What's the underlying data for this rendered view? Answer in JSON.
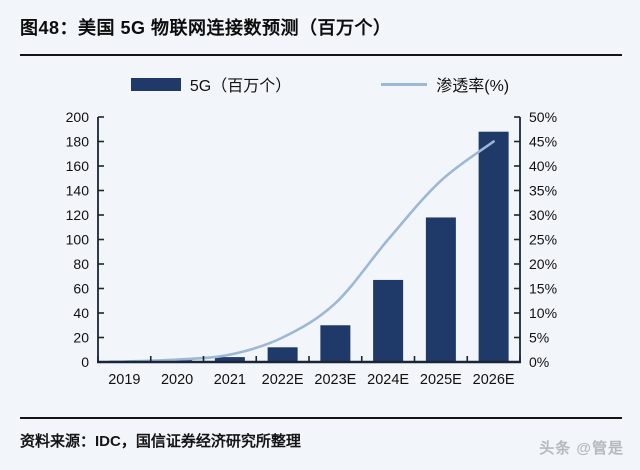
{
  "page": {
    "title": "图48：美国 5G 物联网连接数预测（百万个）",
    "source": "资料来源：IDC，国信证券经济研究所整理",
    "watermark": "头条 @管是"
  },
  "legend": {
    "bar_label": "5G（百万个）",
    "line_label": "渗透率(%)"
  },
  "colors": {
    "bar": "#1f3a68",
    "line": "#9cb8d6",
    "axis": "#1b2537",
    "text": "#111111",
    "background": "#f2f6fa",
    "watermark": "#b5bac0"
  },
  "chart_data": {
    "type": "bar",
    "subtype": "combo-bar-line-dual-axis",
    "title": "美国 5G 物联网连接数预测（百万个）",
    "categories": [
      "2019",
      "2020",
      "2021",
      "2022E",
      "2023E",
      "2024E",
      "2025E",
      "2026E"
    ],
    "series": [
      {
        "name": "5G（百万个）",
        "type": "bar",
        "axis": "left",
        "values": [
          1,
          1.5,
          4,
          12,
          30,
          67,
          118,
          188
        ]
      },
      {
        "name": "渗透率(%)",
        "type": "line",
        "axis": "right",
        "values": [
          0.1,
          0.5,
          1.5,
          5,
          12,
          25,
          37,
          45
        ]
      }
    ],
    "xlabel": "",
    "ylabel": "",
    "left_axis": {
      "min": 0,
      "max": 200,
      "step": 20,
      "suffix": ""
    },
    "right_axis": {
      "min": 0,
      "max": 50,
      "step": 5,
      "suffix": "%"
    },
    "grid": false,
    "legend_position": "top"
  }
}
